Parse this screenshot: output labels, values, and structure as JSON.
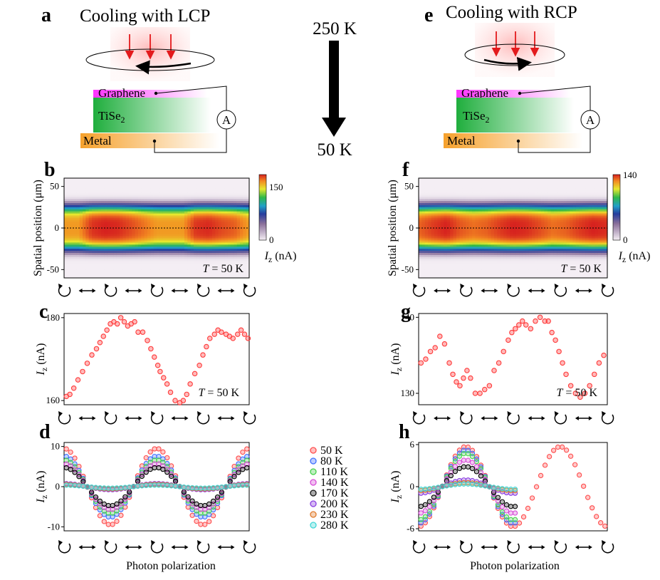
{
  "colors": {
    "panel_bg_low": "#e4dce6",
    "scatter_red": "#ff6b6b",
    "arrow_red": "#e31a1c",
    "graphene": "#ff33ff",
    "tise2": "#2ab84a",
    "metal": "#f6a12c",
    "legend_colors": [
      "#ff4d4d",
      "#3f6fff",
      "#45d24a",
      "#d64ad6",
      "#111111",
      "#8a3ce0",
      "#e07a2a",
      "#3fd6d6"
    ]
  },
  "panel_a": {
    "letter": "a",
    "title": "Cooling with LCP",
    "graphene": "Graphene",
    "tise2": "TiSe",
    "tise2_sub": "2",
    "metal": "Metal",
    "ammeter": "A",
    "rotation": "counterclockwise-arrow-icon"
  },
  "panel_e": {
    "letter": "e",
    "title": "Cooling with RCP",
    "graphene": "Graphene",
    "tise2": "TiSe",
    "tise2_sub": "2",
    "metal": "Metal",
    "ammeter": "A",
    "rotation": "clockwise-arrow-icon"
  },
  "temperature_arrow": {
    "top": "250 K",
    "bottom": "50 K"
  },
  "polarization_ticks": [
    "cw-circle-icon",
    "double-arrow-icon",
    "cw-circle-icon",
    "double-arrow-icon",
    "cw-circle-icon",
    "double-arrow-icon",
    "cw-circle-icon",
    "double-arrow-icon",
    "cw-circle-icon"
  ],
  "xlabel": "Photon polarization",
  "chart_data": [
    {
      "panel": "b",
      "type": "heatmap",
      "ylabel": "Spatial position (μm)",
      "yticks": [
        50,
        0,
        -50
      ],
      "ylim": [
        -60,
        60
      ],
      "annotation_T": "T",
      "annotation_val": " = 50 K",
      "colorbar": {
        "ticks": [
          "150",
          "0"
        ],
        "max_value": 180,
        "label_sym": "I",
        "label_sub": "z",
        "label_unit": " (nA)"
      },
      "band_center_profile": [
        150,
        150,
        175,
        180,
        178,
        170,
        160,
        150,
        150,
        150,
        175,
        178,
        170,
        165,
        150
      ]
    },
    {
      "panel": "f",
      "type": "heatmap",
      "ylabel": "Spatial position (μm)",
      "yticks": [
        50,
        0,
        -50
      ],
      "ylim": [
        -60,
        60
      ],
      "annotation_T": "T",
      "annotation_val": " = 50 K",
      "colorbar": {
        "ticks": [
          "140",
          "0"
        ],
        "max_value": 140,
        "label_sym": "I",
        "label_sub": "z",
        "label_unit": " (nA)"
      },
      "band_center_profile": [
        128,
        135,
        140,
        130,
        125,
        128,
        135,
        140,
        138,
        132,
        125,
        128,
        135,
        140,
        138
      ]
    },
    {
      "panel": "c",
      "type": "scatter",
      "ylabel_sym": "I",
      "ylabel_sub": "z",
      "ylabel_unit": " (nA)",
      "ylim": [
        159,
        181
      ],
      "yticks": [
        160,
        180
      ],
      "annotation_T": "T",
      "annotation_val": " = 50 K",
      "x": [
        0.1,
        0.25,
        0.42,
        0.6,
        0.8,
        1.0,
        1.2,
        1.4,
        1.55,
        1.7,
        1.85,
        2.0,
        2.15,
        2.3,
        2.45,
        2.6,
        2.75,
        2.9,
        3.05,
        3.2,
        3.4,
        3.6,
        3.75,
        3.9,
        4.05,
        4.15,
        4.3,
        4.45,
        4.6,
        4.8,
        5.0,
        5.15,
        5.3,
        5.45,
        5.65,
        5.85,
        6.0,
        6.15,
        6.3,
        6.5,
        6.65,
        6.8,
        7.0,
        7.15,
        7.3,
        7.5,
        7.65,
        7.8,
        7.95
      ],
      "y": [
        161,
        161.5,
        163,
        165,
        167,
        169,
        171,
        172.5,
        174,
        175.5,
        177,
        178.5,
        179,
        178.5,
        180,
        179,
        178,
        178.5,
        179,
        176.5,
        176.5,
        174.5,
        172.5,
        170.5,
        168.5,
        167,
        165.5,
        164,
        162,
        160,
        159.5,
        160,
        161.5,
        164,
        166.5,
        168.5,
        171,
        173,
        175,
        176,
        177,
        176.5,
        176,
        175.5,
        175,
        176,
        177,
        176,
        175
      ]
    },
    {
      "panel": "g",
      "type": "scatter",
      "ylabel_sym": "I",
      "ylabel_sub": "z",
      "ylabel_unit": " (nA)",
      "ylim": [
        128.5,
        140.5
      ],
      "yticks": [
        130,
        140
      ],
      "annotation_T": "T",
      "annotation_val": " = 50 K",
      "x": [
        0.1,
        0.3,
        0.5,
        0.7,
        0.9,
        1.1,
        1.3,
        1.45,
        1.6,
        1.75,
        1.9,
        2.05,
        2.2,
        2.4,
        2.6,
        2.8,
        3.0,
        3.2,
        3.4,
        3.6,
        3.8,
        3.95,
        4.1,
        4.25,
        4.4,
        4.55,
        4.75,
        4.95,
        5.15,
        5.35,
        5.5,
        5.65,
        5.8,
        5.95,
        6.1,
        6.25,
        6.45,
        6.65,
        6.85,
        7.05,
        7.25,
        7.45,
        7.65,
        7.85
      ],
      "y": [
        134,
        134.5,
        135.5,
        136,
        137.5,
        136.5,
        134,
        132.5,
        131.5,
        131,
        132,
        133,
        132,
        130,
        130,
        130.5,
        131,
        133,
        134,
        135.5,
        137,
        138,
        138.5,
        139,
        139.5,
        139,
        138.5,
        139.5,
        140,
        139.5,
        139.5,
        138,
        137,
        135.5,
        134,
        132.5,
        131,
        130,
        129.5,
        130,
        131,
        132.5,
        134,
        135
      ]
    },
    {
      "panel": "d",
      "type": "scatter",
      "ylabel_sym": "I",
      "ylabel_sub": "z",
      "ylabel_unit": " (nA)",
      "ylim": [
        -11,
        11
      ],
      "yticks": [
        10,
        0,
        -10
      ],
      "series": [
        {
          "name": "50 K",
          "amp": 10
        },
        {
          "name": "80 K",
          "amp": 8
        },
        {
          "name": "110 K",
          "amp": 7
        },
        {
          "name": "140 K",
          "amp": 6
        },
        {
          "name": "170 K",
          "amp": 5
        },
        {
          "name": "200 K",
          "amp": 0.8
        },
        {
          "name": "230 K",
          "amp": 0.6
        },
        {
          "name": "280 K",
          "amp": 0.4
        }
      ]
    },
    {
      "panel": "h",
      "type": "scatter",
      "ylabel_sym": "I",
      "ylabel_sub": "z",
      "ylabel_unit": " (nA)",
      "ylim": [
        -6.3,
        6.3
      ],
      "yticks": [
        6,
        0,
        -6
      ],
      "series": [
        {
          "name": "50 K",
          "amp": 6
        },
        {
          "name": "80 K",
          "amp": 5.5
        },
        {
          "name": "110 K",
          "amp": 5
        },
        {
          "name": "140 K",
          "amp": 4
        },
        {
          "name": "170 K",
          "amp": 3
        },
        {
          "name": "200 K",
          "amp": 1
        },
        {
          "name": "230 K",
          "amp": 0.6
        },
        {
          "name": "280 K",
          "amp": 0.4
        }
      ]
    }
  ],
  "legend": [
    "50 K",
    "80 K",
    "110 K",
    "140 K",
    "170 K",
    "200 K",
    "230 K",
    "280 K"
  ]
}
